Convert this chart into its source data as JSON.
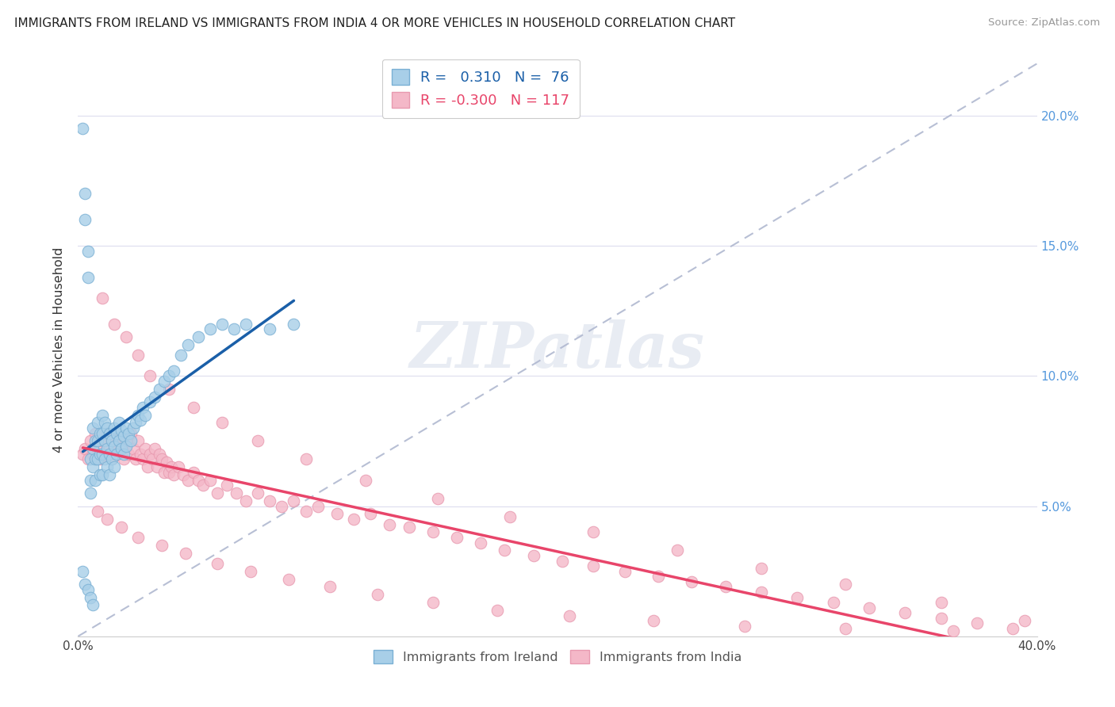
{
  "title": "IMMIGRANTS FROM IRELAND VS IMMIGRANTS FROM INDIA 4 OR MORE VEHICLES IN HOUSEHOLD CORRELATION CHART",
  "source": "Source: ZipAtlas.com",
  "ylabel": "4 or more Vehicles in Household",
  "xlim": [
    0.0,
    0.4
  ],
  "ylim": [
    0.0,
    0.22
  ],
  "ireland_color": "#a8cfe8",
  "india_color": "#f4b8c8",
  "ireland_edge": "#7ab0d4",
  "india_edge": "#e89ab0",
  "trend_ireland_color": "#1a5fa8",
  "trend_india_color": "#e8456a",
  "diagonal_color": "#b0b8d0",
  "R_ireland": 0.31,
  "N_ireland": 76,
  "R_india": -0.3,
  "N_india": 117,
  "watermark_text": "ZIPatlas",
  "legend_ireland": "Immigrants from Ireland",
  "legend_india": "Immigrants from India",
  "ireland_x": [
    0.002,
    0.003,
    0.003,
    0.004,
    0.004,
    0.005,
    0.005,
    0.005,
    0.006,
    0.006,
    0.006,
    0.007,
    0.007,
    0.007,
    0.008,
    0.008,
    0.008,
    0.009,
    0.009,
    0.009,
    0.01,
    0.01,
    0.01,
    0.01,
    0.011,
    0.011,
    0.011,
    0.012,
    0.012,
    0.012,
    0.013,
    0.013,
    0.013,
    0.014,
    0.014,
    0.015,
    0.015,
    0.015,
    0.016,
    0.016,
    0.017,
    0.017,
    0.018,
    0.018,
    0.019,
    0.019,
    0.02,
    0.02,
    0.021,
    0.022,
    0.023,
    0.024,
    0.025,
    0.026,
    0.027,
    0.028,
    0.03,
    0.032,
    0.034,
    0.036,
    0.038,
    0.04,
    0.043,
    0.046,
    0.05,
    0.055,
    0.06,
    0.065,
    0.07,
    0.08,
    0.09,
    0.002,
    0.003,
    0.004,
    0.005,
    0.006
  ],
  "ireland_y": [
    0.195,
    0.17,
    0.16,
    0.148,
    0.138,
    0.068,
    0.06,
    0.055,
    0.08,
    0.072,
    0.065,
    0.075,
    0.068,
    0.06,
    0.082,
    0.075,
    0.068,
    0.078,
    0.07,
    0.062,
    0.085,
    0.078,
    0.07,
    0.062,
    0.082,
    0.075,
    0.068,
    0.08,
    0.072,
    0.065,
    0.078,
    0.07,
    0.062,
    0.075,
    0.068,
    0.08,
    0.073,
    0.065,
    0.078,
    0.07,
    0.082,
    0.075,
    0.079,
    0.072,
    0.077,
    0.07,
    0.08,
    0.073,
    0.078,
    0.075,
    0.08,
    0.082,
    0.085,
    0.083,
    0.088,
    0.085,
    0.09,
    0.092,
    0.095,
    0.098,
    0.1,
    0.102,
    0.108,
    0.112,
    0.115,
    0.118,
    0.12,
    0.118,
    0.12,
    0.118,
    0.12,
    0.025,
    0.02,
    0.018,
    0.015,
    0.012
  ],
  "india_x": [
    0.002,
    0.003,
    0.004,
    0.005,
    0.006,
    0.007,
    0.008,
    0.009,
    0.01,
    0.011,
    0.012,
    0.013,
    0.014,
    0.015,
    0.016,
    0.017,
    0.018,
    0.019,
    0.02,
    0.021,
    0.022,
    0.023,
    0.024,
    0.025,
    0.026,
    0.027,
    0.028,
    0.029,
    0.03,
    0.031,
    0.032,
    0.033,
    0.034,
    0.035,
    0.036,
    0.037,
    0.038,
    0.039,
    0.04,
    0.042,
    0.044,
    0.046,
    0.048,
    0.05,
    0.052,
    0.055,
    0.058,
    0.062,
    0.066,
    0.07,
    0.075,
    0.08,
    0.085,
    0.09,
    0.095,
    0.1,
    0.108,
    0.115,
    0.122,
    0.13,
    0.138,
    0.148,
    0.158,
    0.168,
    0.178,
    0.19,
    0.202,
    0.215,
    0.228,
    0.242,
    0.256,
    0.27,
    0.285,
    0.3,
    0.315,
    0.33,
    0.345,
    0.36,
    0.375,
    0.39,
    0.01,
    0.015,
    0.02,
    0.025,
    0.03,
    0.038,
    0.048,
    0.06,
    0.075,
    0.095,
    0.12,
    0.15,
    0.18,
    0.215,
    0.25,
    0.285,
    0.32,
    0.36,
    0.395,
    0.008,
    0.012,
    0.018,
    0.025,
    0.035,
    0.045,
    0.058,
    0.072,
    0.088,
    0.105,
    0.125,
    0.148,
    0.175,
    0.205,
    0.24,
    0.278,
    0.32,
    0.365
  ],
  "india_y": [
    0.07,
    0.072,
    0.068,
    0.075,
    0.07,
    0.078,
    0.072,
    0.068,
    0.075,
    0.07,
    0.078,
    0.072,
    0.068,
    0.075,
    0.07,
    0.078,
    0.072,
    0.068,
    0.075,
    0.07,
    0.078,
    0.072,
    0.068,
    0.075,
    0.07,
    0.068,
    0.072,
    0.065,
    0.07,
    0.068,
    0.072,
    0.065,
    0.07,
    0.068,
    0.063,
    0.067,
    0.063,
    0.065,
    0.062,
    0.065,
    0.062,
    0.06,
    0.063,
    0.06,
    0.058,
    0.06,
    0.055,
    0.058,
    0.055,
    0.052,
    0.055,
    0.052,
    0.05,
    0.052,
    0.048,
    0.05,
    0.047,
    0.045,
    0.047,
    0.043,
    0.042,
    0.04,
    0.038,
    0.036,
    0.033,
    0.031,
    0.029,
    0.027,
    0.025,
    0.023,
    0.021,
    0.019,
    0.017,
    0.015,
    0.013,
    0.011,
    0.009,
    0.007,
    0.005,
    0.003,
    0.13,
    0.12,
    0.115,
    0.108,
    0.1,
    0.095,
    0.088,
    0.082,
    0.075,
    0.068,
    0.06,
    0.053,
    0.046,
    0.04,
    0.033,
    0.026,
    0.02,
    0.013,
    0.006,
    0.048,
    0.045,
    0.042,
    0.038,
    0.035,
    0.032,
    0.028,
    0.025,
    0.022,
    0.019,
    0.016,
    0.013,
    0.01,
    0.008,
    0.006,
    0.004,
    0.003,
    0.002
  ]
}
